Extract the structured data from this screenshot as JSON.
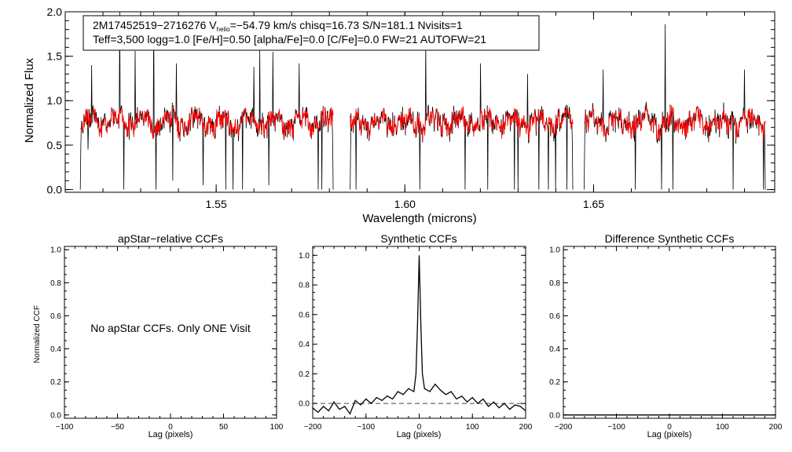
{
  "chart_data": [
    {
      "type": "line",
      "panel": "spectrum",
      "info_line1_prefix": "2M17452519−2716276  V",
      "info_line1_sub": "helio",
      "info_line1_suffix": "=−54.79 km/s  chisq=16.73  S/N=181.1  Nvisits=1",
      "info_line2": "Teff=3,500 logg=1.0 [Fe/H]=0.50 [alpha/Fe]=0.0 [C/Fe]=0.0 FW=21 AUTOFW=21",
      "xlabel": "Wavelength (microns)",
      "ylabel": "Normalized Flux",
      "xlim": [
        1.51,
        1.698
      ],
      "ylim": [
        -0.03,
        2.0
      ],
      "xticks": [
        1.55,
        1.6,
        1.65
      ],
      "xtick_labels": [
        "1.55",
        "1.60",
        "1.65"
      ],
      "yticks": [
        0.0,
        0.5,
        1.0,
        1.5,
        2.0
      ],
      "ytick_labels": [
        "0.0",
        "0.5",
        "1.0",
        "1.5",
        "2.0"
      ],
      "chip_ranges": [
        [
          1.514,
          1.581
        ],
        [
          1.5855,
          1.6445
        ],
        [
          1.6475,
          1.6955
        ]
      ],
      "series": [
        {
          "name": "observed",
          "color": "#000000"
        },
        {
          "name": "model",
          "color": "#ff0000"
        }
      ],
      "emission_spikes": [
        {
          "x": 1.5245,
          "y": 2.0
        },
        {
          "x": 1.5285,
          "y": 1.56
        },
        {
          "x": 1.5335,
          "y": 2.0
        },
        {
          "x": 1.517,
          "y": 1.4
        },
        {
          "x": 1.5395,
          "y": 1.42
        },
        {
          "x": 1.56,
          "y": 1.38
        },
        {
          "x": 1.5615,
          "y": 1.58
        },
        {
          "x": 1.565,
          "y": 1.55
        },
        {
          "x": 1.572,
          "y": 1.42
        },
        {
          "x": 1.6055,
          "y": 1.65
        },
        {
          "x": 1.62,
          "y": 1.42
        },
        {
          "x": 1.6325,
          "y": 1.3
        },
        {
          "x": 1.6525,
          "y": 1.35
        },
        {
          "x": 1.669,
          "y": 1.86
        },
        {
          "x": 1.69,
          "y": 1.35
        }
      ],
      "absorption_dips": [
        {
          "x": 1.516,
          "y": 0.45
        },
        {
          "x": 1.5255,
          "y": 0.0
        },
        {
          "x": 1.534,
          "y": 0.0
        },
        {
          "x": 1.5385,
          "y": 0.1
        },
        {
          "x": 1.5465,
          "y": 0.05
        },
        {
          "x": 1.5525,
          "y": 0.0
        },
        {
          "x": 1.5545,
          "y": 0.0
        },
        {
          "x": 1.557,
          "y": 0.0
        },
        {
          "x": 1.564,
          "y": 0.05
        },
        {
          "x": 1.577,
          "y": 0.0
        },
        {
          "x": 1.578,
          "y": 0.0
        },
        {
          "x": 1.587,
          "y": 0.0
        },
        {
          "x": 1.604,
          "y": 0.0
        },
        {
          "x": 1.616,
          "y": 0.0
        },
        {
          "x": 1.622,
          "y": 0.0
        },
        {
          "x": 1.629,
          "y": 0.0
        },
        {
          "x": 1.63,
          "y": 0.0
        },
        {
          "x": 1.6355,
          "y": 0.0
        },
        {
          "x": 1.638,
          "y": 0.0
        },
        {
          "x": 1.64,
          "y": 0.0
        },
        {
          "x": 1.643,
          "y": 0.0
        },
        {
          "x": 1.661,
          "y": 0.0
        },
        {
          "x": 1.668,
          "y": 0.0
        },
        {
          "x": 1.671,
          "y": 0.0
        },
        {
          "x": 1.687,
          "y": 0.0
        },
        {
          "x": 1.695,
          "y": 0.0
        }
      ]
    },
    {
      "type": "line",
      "panel": "ccf-apstar",
      "title": "apStar−relative CCFs",
      "xlabel": "Lag (pixels)",
      "ylabel": "Normalized CCF",
      "xlim": [
        -100,
        100
      ],
      "ylim": [
        -0.02,
        1.02
      ],
      "xticks": [
        -100,
        -50,
        0,
        50,
        100
      ],
      "xtick_labels": [
        "−100",
        "−50",
        "0",
        "50",
        "100"
      ],
      "yticks": [
        0.0,
        0.2,
        0.4,
        0.6,
        0.8,
        1.0
      ],
      "ytick_labels": [
        "0.0",
        "0.2",
        "0.4",
        "0.6",
        "0.8",
        "1.0"
      ],
      "annotation": "No apStar CCFs.  Only ONE Visit"
    },
    {
      "type": "line",
      "panel": "ccf-synthetic",
      "title": "Synthetic CCFs",
      "xlabel": "Lag (pixels)",
      "xlim": [
        -200,
        200
      ],
      "ylim": [
        -0.1,
        1.06
      ],
      "xticks": [
        -200,
        -100,
        0,
        100,
        200
      ],
      "xtick_labels": [
        "−200",
        "−100",
        "0",
        "100",
        "200"
      ],
      "yticks": [
        0.0,
        0.2,
        0.4,
        0.6,
        0.8,
        1.0
      ],
      "ytick_labels": [
        "0.0",
        "0.2",
        "0.4",
        "0.6",
        "0.8",
        "1.0"
      ],
      "baseline": 0.0,
      "x": [
        -200,
        -190,
        -180,
        -170,
        -160,
        -150,
        -140,
        -130,
        -120,
        -110,
        -100,
        -90,
        -80,
        -70,
        -60,
        -50,
        -40,
        -30,
        -20,
        -10,
        -6,
        -3,
        0,
        3,
        6,
        10,
        20,
        30,
        40,
        50,
        60,
        70,
        80,
        90,
        100,
        110,
        120,
        130,
        140,
        150,
        160,
        170,
        180,
        190,
        200
      ],
      "y": [
        -0.03,
        -0.06,
        -0.02,
        -0.05,
        0.01,
        -0.04,
        -0.02,
        -0.07,
        0.02,
        -0.01,
        0.03,
        0.0,
        0.04,
        0.02,
        0.05,
        0.03,
        0.08,
        0.06,
        0.1,
        0.08,
        0.2,
        0.55,
        1.0,
        0.55,
        0.2,
        0.1,
        0.08,
        0.13,
        0.09,
        0.06,
        0.08,
        0.03,
        0.05,
        0.01,
        0.04,
        0.0,
        0.03,
        -0.02,
        0.01,
        -0.03,
        0.0,
        -0.04,
        -0.01,
        -0.02,
        -0.05
      ]
    },
    {
      "type": "line",
      "panel": "ccf-difference",
      "title": "Difference Synthetic CCFs",
      "xlabel": "Lag (pixels)",
      "xlim": [
        -200,
        200
      ],
      "ylim": [
        -0.02,
        1.02
      ],
      "xticks": [
        -200,
        -100,
        0,
        100,
        200
      ],
      "xtick_labels": [
        "−200",
        "−100",
        "0",
        "100",
        "200"
      ],
      "yticks": [
        0.0,
        0.2,
        0.4,
        0.6,
        0.8,
        1.0
      ],
      "ytick_labels": [
        "0.0",
        "0.2",
        "0.4",
        "0.6",
        "0.8",
        "1.0"
      ],
      "x": [
        -200,
        200
      ],
      "y": [
        0.0,
        0.0
      ]
    }
  ]
}
